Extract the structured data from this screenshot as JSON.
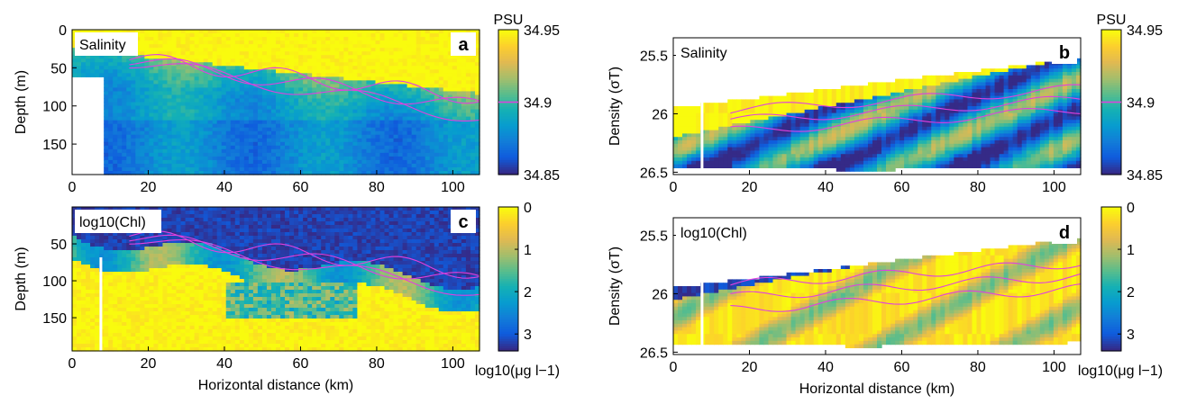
{
  "chart_data": [
    {
      "id": "a",
      "type": "heatmap",
      "panel_letter": "a",
      "inset_label": "Salinity",
      "ylabel": "Depth (m)",
      "xlabel": "",
      "xlim": [
        0,
        107
      ],
      "ylim": [
        190,
        0
      ],
      "y_inverted": true,
      "xticks": [
        "0",
        "20",
        "40",
        "60",
        "80",
        "100"
      ],
      "yticks": [
        "0",
        "50",
        "100",
        "150"
      ],
      "colorbar": {
        "title": "PSU",
        "ticks": [
          "34.95",
          "34.9",
          "34.85"
        ],
        "range": [
          34.85,
          34.95
        ],
        "unit_label": "",
        "highlight_value": "34.9",
        "colormap": "parula",
        "reversed": false
      },
      "contour_color": "#e040e0"
    },
    {
      "id": "b",
      "type": "heatmap",
      "panel_letter": "b",
      "inset_label": "Salinity",
      "ylabel": "Density (σT)",
      "xlabel": "",
      "xlim": [
        0,
        107
      ],
      "ylim": [
        26.52,
        25.35
      ],
      "y_inverted": true,
      "xticks": [
        "0",
        "20",
        "40",
        "60",
        "80",
        "100"
      ],
      "yticks": [
        "25.5",
        "26",
        "26.5"
      ],
      "colorbar": {
        "title": "PSU",
        "ticks": [
          "34.95",
          "34.9",
          "34.85"
        ],
        "range": [
          34.85,
          34.95
        ],
        "unit_label": "",
        "highlight_value": "34.9",
        "colormap": "parula",
        "reversed": false
      },
      "contour_color": "#e040e0"
    },
    {
      "id": "c",
      "type": "heatmap",
      "panel_letter": "c",
      "inset_label": "log10(Chl)",
      "ylabel": "Depth (m)",
      "xlabel": "Horizontal distance (km)",
      "xlim": [
        0,
        107
      ],
      "ylim": [
        195,
        0
      ],
      "y_inverted": true,
      "xticks": [
        "0",
        "20",
        "40",
        "60",
        "80",
        "100"
      ],
      "yticks": [
        "50",
        "100",
        "150"
      ],
      "colorbar": {
        "title": "",
        "ticks": [
          "0",
          "1",
          "2",
          "3"
        ],
        "range": [
          0,
          3.4
        ],
        "unit_label": "log10(μg l−1)",
        "highlight_value": "",
        "colormap": "parula",
        "reversed": true
      },
      "contour_color": "#e040e0"
    },
    {
      "id": "d",
      "type": "heatmap",
      "panel_letter": "d",
      "inset_label": "log10(Chl)",
      "ylabel": "Density (σT)",
      "xlabel": "Horizontal distance (km)",
      "xlim": [
        0,
        107
      ],
      "ylim": [
        26.52,
        25.35
      ],
      "y_inverted": true,
      "xticks": [
        "0",
        "20",
        "40",
        "60",
        "80",
        "100"
      ],
      "yticks": [
        "25.5",
        "26",
        "26.5"
      ],
      "colorbar": {
        "title": "",
        "ticks": [
          "0",
          "1",
          "2",
          "3"
        ],
        "range": [
          0,
          3.4
        ],
        "unit_label": "log10(μg l−1)",
        "highlight_value": "",
        "colormap": "parula",
        "reversed": true
      },
      "contour_color": "#e040e0"
    }
  ]
}
